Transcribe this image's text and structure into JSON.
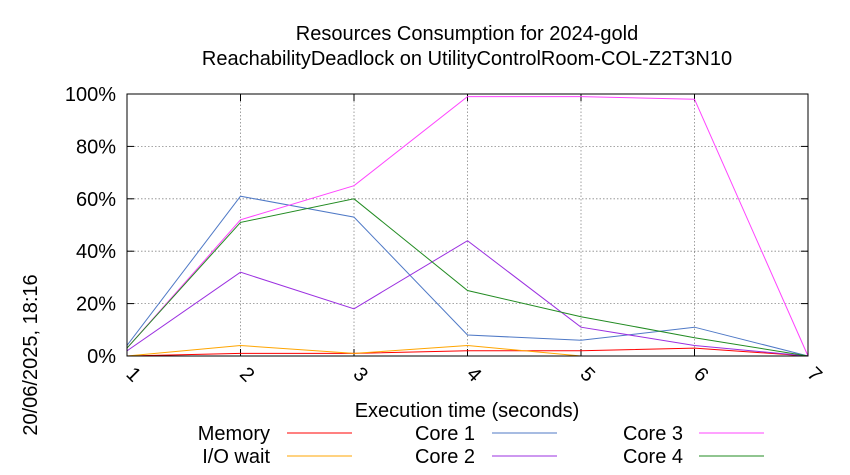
{
  "chart_data": {
    "type": "line",
    "title": "Resources Consumption for 2024-gold",
    "subtitle": "ReachabilityDeadlock on UtilityControlRoom-COL-Z2T3N10",
    "xlabel": "Execution time (seconds)",
    "ylabel": "",
    "side_label": "20/06/2025, 18:16",
    "xlim": [
      1,
      7
    ],
    "ylim": [
      0,
      100
    ],
    "x_ticks": [
      "1",
      "2",
      "3",
      "4",
      "5",
      "6",
      "7"
    ],
    "y_ticks": [
      "0%",
      "20%",
      "40%",
      "60%",
      "80%",
      "100%"
    ],
    "grid": true,
    "legend_position": "bottom",
    "series": [
      {
        "name": "Memory",
        "color": "#ff0000",
        "x": [
          1,
          2,
          3,
          4,
          5,
          6,
          7
        ],
        "y": [
          0,
          1,
          1,
          2,
          2,
          3,
          0
        ]
      },
      {
        "name": "I/O wait",
        "color": "#ffa500",
        "x": [
          1,
          2,
          3,
          4,
          5,
          6,
          7
        ],
        "y": [
          0,
          4,
          1,
          4,
          0,
          0,
          0
        ]
      },
      {
        "name": "Core 1",
        "color": "#4f79c6",
        "x": [
          1,
          2,
          3,
          4,
          5,
          6,
          7
        ],
        "y": [
          4,
          61,
          53,
          8,
          6,
          11,
          0
        ]
      },
      {
        "name": "Core 2",
        "color": "#9b30e0",
        "x": [
          1,
          2,
          3,
          4,
          5,
          6,
          7
        ],
        "y": [
          2,
          32,
          18,
          44,
          11,
          4,
          0
        ]
      },
      {
        "name": "Core 3",
        "color": "#ff44ff",
        "x": [
          1,
          2,
          3,
          4,
          5,
          6,
          7
        ],
        "y": [
          3,
          52,
          65,
          99,
          99,
          98,
          0
        ]
      },
      {
        "name": "Core 4",
        "color": "#228b22",
        "x": [
          1,
          2,
          3,
          4,
          5,
          6,
          7
        ],
        "y": [
          3,
          51,
          60,
          25,
          15,
          7,
          0
        ]
      }
    ]
  }
}
